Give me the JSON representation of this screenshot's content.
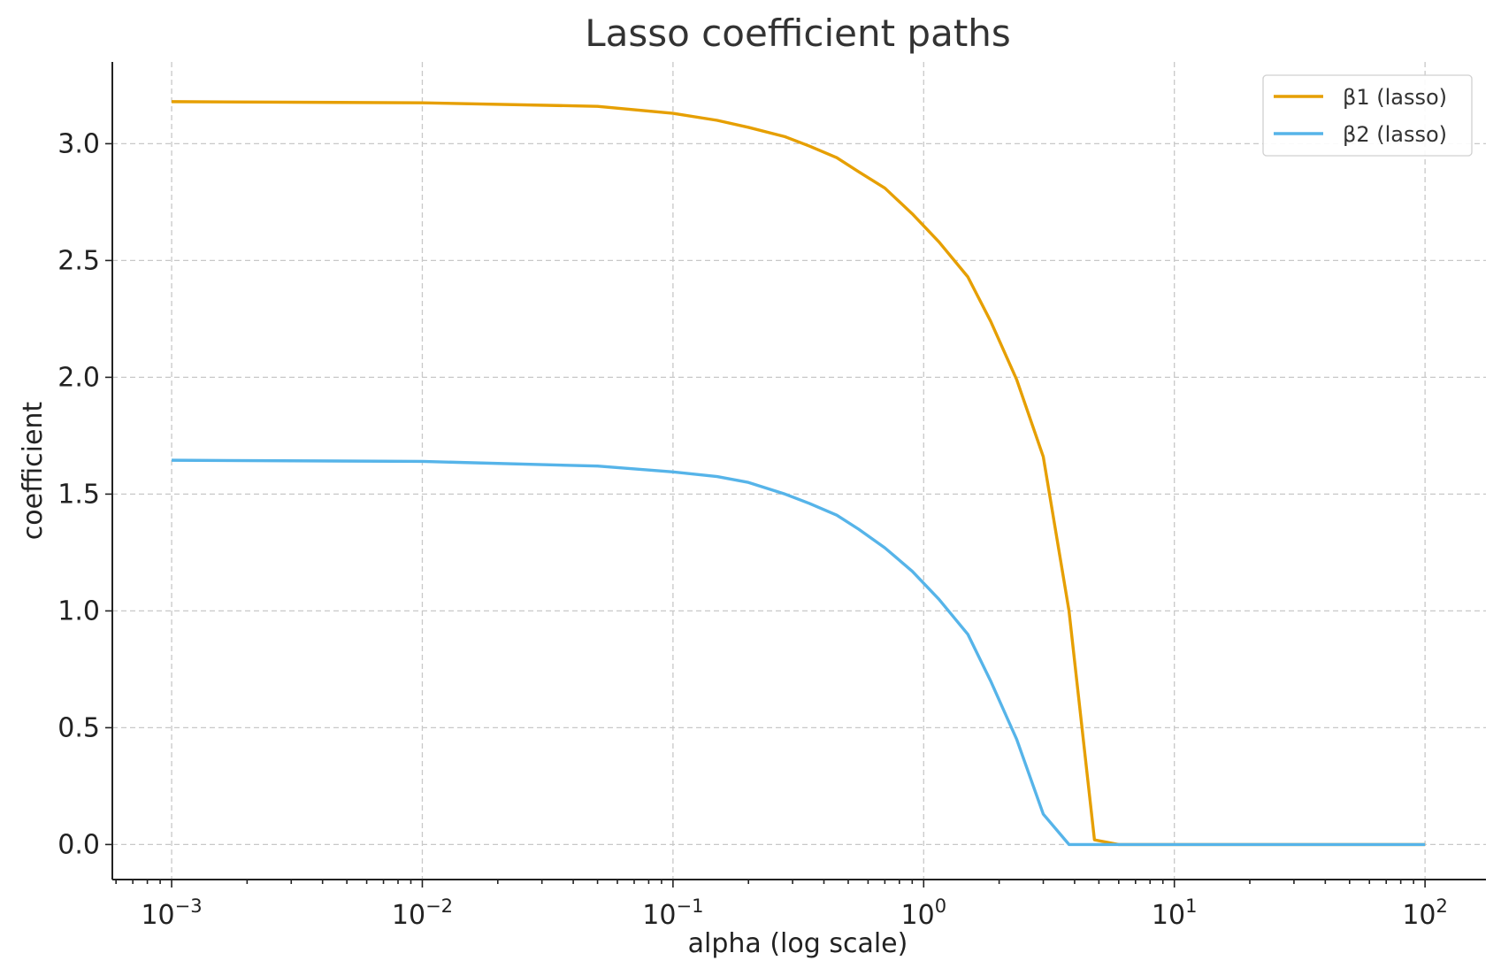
{
  "chart_data": {
    "type": "line",
    "title": "Lasso coefficient paths",
    "xlabel": "alpha (log scale)",
    "ylabel": "coefficient",
    "xscale": "log",
    "xlim": [
      0.00058,
      175
    ],
    "ylim": [
      -0.15,
      3.35
    ],
    "grid": true,
    "legend_position": "top-right",
    "x_ticks": [
      {
        "value": 0.001,
        "base": "10",
        "exp": "−3"
      },
      {
        "value": 0.01,
        "base": "10",
        "exp": "−2"
      },
      {
        "value": 0.1,
        "base": "10",
        "exp": "−1"
      },
      {
        "value": 1,
        "base": "10",
        "exp": "0"
      },
      {
        "value": 10,
        "base": "10",
        "exp": "1"
      },
      {
        "value": 100,
        "base": "10",
        "exp": "2"
      }
    ],
    "y_ticks": [
      {
        "value": 0.0,
        "label": "0.0"
      },
      {
        "value": 0.5,
        "label": "0.5"
      },
      {
        "value": 1.0,
        "label": "1.0"
      },
      {
        "value": 1.5,
        "label": "1.5"
      },
      {
        "value": 2.0,
        "label": "2.0"
      },
      {
        "value": 2.5,
        "label": "2.5"
      },
      {
        "value": 3.0,
        "label": "3.0"
      }
    ],
    "series": [
      {
        "name": "β1 (lasso)",
        "color": "#E69F00",
        "x": [
          0.001,
          0.01,
          0.05,
          0.1,
          0.15,
          0.2,
          0.28,
          0.35,
          0.45,
          0.55,
          0.7,
          0.9,
          1.15,
          1.5,
          1.85,
          2.35,
          3.0,
          3.8,
          4.8,
          6.0,
          10,
          100
        ],
        "y": [
          3.18,
          3.175,
          3.16,
          3.13,
          3.1,
          3.07,
          3.03,
          2.99,
          2.94,
          2.88,
          2.81,
          2.7,
          2.58,
          2.43,
          2.24,
          1.99,
          1.66,
          1.0,
          0.02,
          0.0,
          0.0,
          0.0
        ]
      },
      {
        "name": "β2 (lasso)",
        "color": "#56B4E9",
        "x": [
          0.001,
          0.01,
          0.05,
          0.1,
          0.15,
          0.2,
          0.28,
          0.35,
          0.45,
          0.55,
          0.7,
          0.9,
          1.15,
          1.5,
          1.85,
          2.35,
          3.0,
          3.8,
          4.8,
          6.0,
          10,
          100
        ],
        "y": [
          1.645,
          1.64,
          1.62,
          1.595,
          1.575,
          1.55,
          1.5,
          1.46,
          1.41,
          1.35,
          1.27,
          1.17,
          1.05,
          0.9,
          0.7,
          0.45,
          0.13,
          0.0,
          0.0,
          0.0,
          0.0,
          0.0
        ]
      }
    ]
  }
}
